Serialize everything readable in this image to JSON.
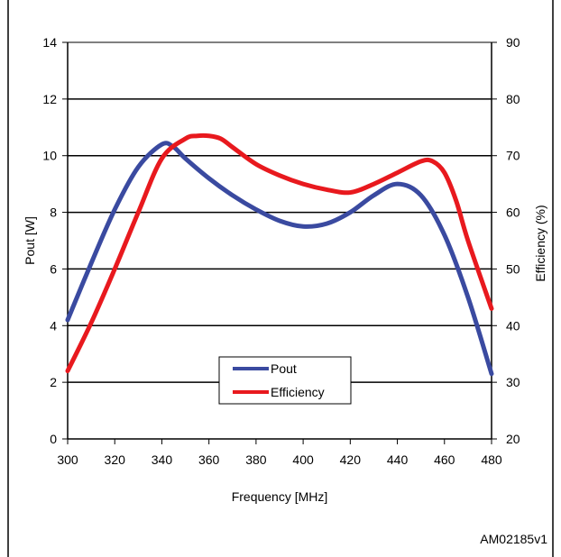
{
  "figure_id": "AM02185v1",
  "chart_data": {
    "type": "line",
    "title": "",
    "xlabel": "Frequency  [MHz]",
    "ylabel_left": "Pout [W]",
    "ylabel_right": "Efficiency (%)",
    "xlim": [
      300,
      480
    ],
    "ylim_left": [
      0,
      14
    ],
    "ylim_right": [
      20,
      90
    ],
    "x_ticks": [
      "300",
      "320",
      "340",
      "360",
      "380",
      "400",
      "420",
      "440",
      "460",
      "480"
    ],
    "y_ticks_left": [
      "0",
      "2",
      "4",
      "6",
      "8",
      "10",
      "12",
      "14"
    ],
    "y_ticks_right": [
      "20",
      "30",
      "40",
      "50",
      "60",
      "70",
      "80",
      "90"
    ],
    "grid": "horizontal",
    "legend_position": "bottom-center",
    "series": [
      {
        "name": "Pout",
        "axis": "left",
        "color": "#3a4aa0",
        "x": [
          300,
          310,
          320,
          330,
          340,
          345,
          350,
          360,
          370,
          380,
          390,
          400,
          410,
          420,
          430,
          440,
          450,
          460,
          470,
          480
        ],
        "y": [
          4.2,
          6.2,
          8.1,
          9.6,
          10.4,
          10.3,
          9.9,
          9.2,
          8.6,
          8.1,
          7.7,
          7.5,
          7.6,
          8.0,
          8.6,
          9.0,
          8.6,
          7.2,
          5.0,
          2.3
        ]
      },
      {
        "name": "Efficiency",
        "axis": "right",
        "color": "#e8191e",
        "x": [
          300,
          310,
          320,
          330,
          340,
          350,
          355,
          360,
          365,
          370,
          380,
          390,
          400,
          410,
          420,
          430,
          440,
          450,
          455,
          460,
          465,
          470,
          480
        ],
        "y": [
          32,
          40.5,
          50,
          60,
          69.5,
          73,
          73.5,
          73.5,
          73,
          71.5,
          68.5,
          66.5,
          65,
          64,
          63.5,
          65,
          67,
          69,
          69,
          67,
          62,
          55,
          43
        ]
      }
    ]
  }
}
